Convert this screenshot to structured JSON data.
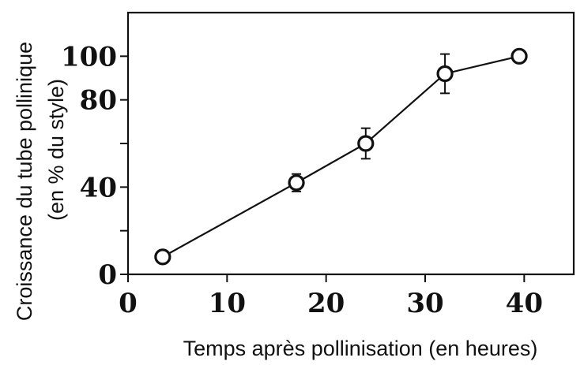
{
  "chart_data": {
    "type": "line",
    "title": "",
    "xlabel": "Temps après pollinisation (en heures)",
    "ylabel_line1": "Croissance du tube pollinique",
    "ylabel_line2": "(en % du style)",
    "xlim": [
      0,
      45
    ],
    "ylim": [
      0,
      120
    ],
    "x_ticks": [
      0,
      10,
      20,
      30,
      40
    ],
    "y_ticks_labeled": [
      0,
      40,
      80,
      100
    ],
    "y_ticks_minor": [
      20,
      60
    ],
    "grid": false,
    "series": [
      {
        "x": [
          3.5,
          17,
          24,
          32,
          39.5
        ],
        "y": [
          8,
          42,
          60,
          92,
          100
        ],
        "yerr": [
          1.5,
          4,
          7,
          9,
          1.5
        ],
        "marker": "open-circle",
        "color": "#111111"
      }
    ]
  }
}
